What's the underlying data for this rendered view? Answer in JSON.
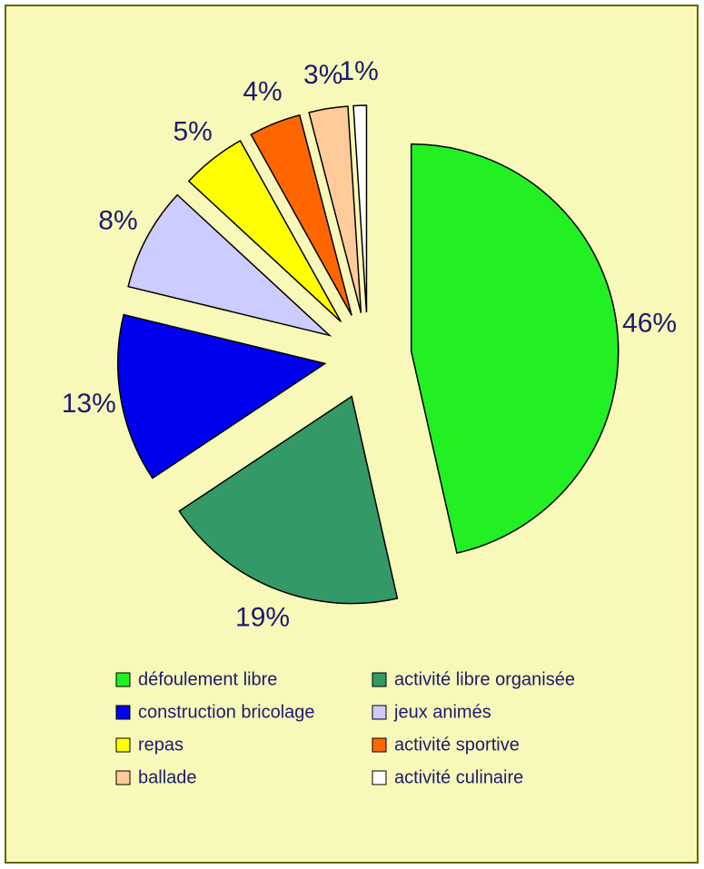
{
  "chart_data": {
    "type": "pie",
    "categories": [
      "défoulement libre",
      "activité libre organisée",
      "construction bricolage",
      "jeux animés",
      "repas",
      "activité sportive",
      "ballade",
      "activité culinaire"
    ],
    "values": [
      46,
      19,
      13,
      8,
      5,
      4,
      3,
      1
    ],
    "value_labels": [
      "46%",
      "19%",
      "13%",
      "8%",
      "5%",
      "4%",
      "3%",
      "1%"
    ],
    "colors": [
      "#22f022",
      "#339966",
      "#0000ee",
      "#ccccff",
      "#ffff00",
      "#ff6600",
      "#ffcc99",
      "#ffffff"
    ],
    "legend": "bottom"
  }
}
